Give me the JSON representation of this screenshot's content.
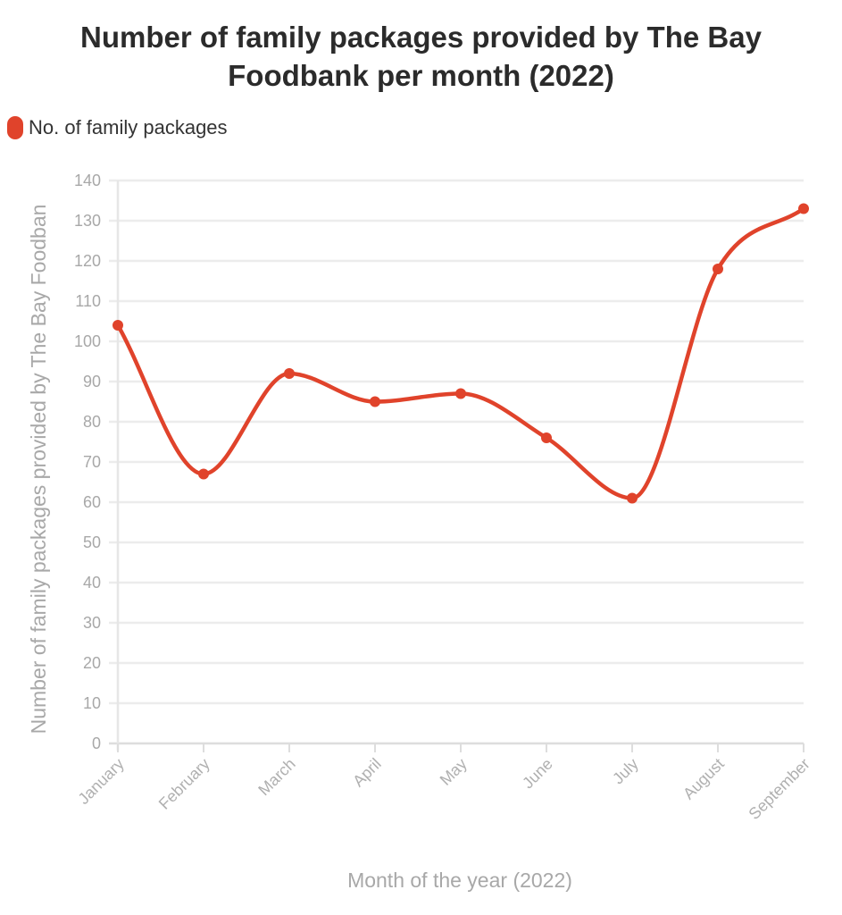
{
  "title_line1": "Number of family packages provided by The Bay",
  "title_line2": "Foodbank per month (2022)",
  "chart_data": {
    "type": "line",
    "title": "Number of family packages provided by The Bay Foodbank per month (2022)",
    "categories": [
      "January",
      "February",
      "March",
      "April",
      "May",
      "June",
      "July",
      "August",
      "September"
    ],
    "series": [
      {
        "name": "No. of family packages",
        "values": [
          104,
          67,
          92,
          85,
          87,
          76,
          61,
          118,
          133
        ],
        "color": "#e0432b"
      }
    ],
    "xlabel": "Month of the year (2022)",
    "ylabel": "Number of family packages provided by The Bay Foodban",
    "ylim": [
      0,
      140
    ],
    "yticks": [
      0,
      10,
      20,
      30,
      40,
      50,
      60,
      70,
      80,
      90,
      100,
      110,
      120,
      130,
      140
    ],
    "grid": true,
    "legend": "top-left"
  }
}
